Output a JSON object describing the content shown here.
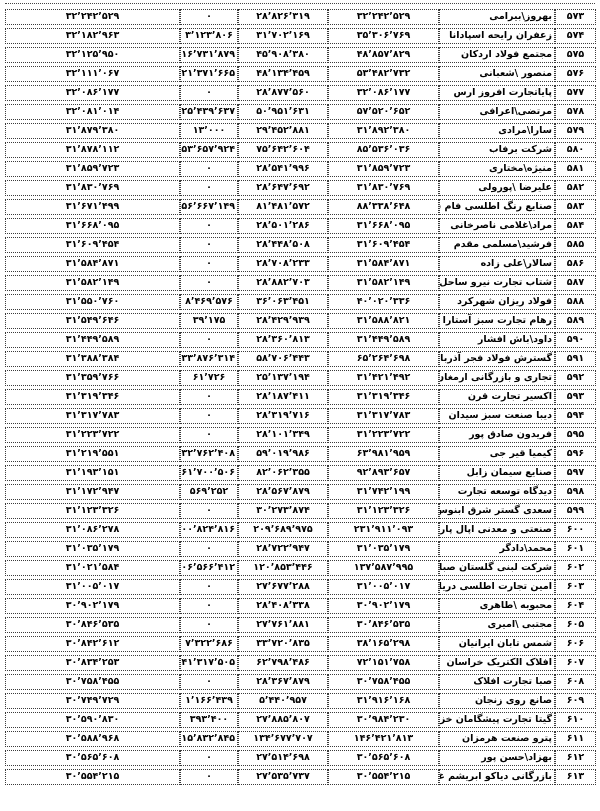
{
  "page": {
    "background": "#ffffff",
    "text_color": "#000000",
    "border_style": "dotted-black"
  },
  "table": {
    "direction": "rtl",
    "columns": [
      "rank",
      "name",
      "value1",
      "value2",
      "value3",
      "value4"
    ],
    "rows": [
      {
        "no": "۵۷۳",
        "name": "بهروز\\بیرامی",
        "v1": "۳۲٬۲۴۲٬۵۲۹",
        "v2": "۲۸٬۸۲۶٬۳۱۹",
        "v3": "۰",
        "v4": "۳۲٬۲۴۲٬۵۲۹"
      },
      {
        "no": "۵۷۴",
        "name": "زعفران رایحه اسپادانا",
        "v1": "۳۵٬۳۰۶٬۷۶۹",
        "v2": "۳۱٬۷۰۲٬۱۶۹",
        "v3": "۳٬۱۲۳٬۸۰۶",
        "v4": "۳۲٬۱۸۲٬۹۶۳"
      },
      {
        "no": "۵۷۵",
        "name": "مجتمع فولاد اردکان",
        "v1": "۴۸٬۸۵۷٬۸۲۹",
        "v2": "۴۵٬۹۰۸٬۳۸۰",
        "v3": "۱۶٬۷۳۱٬۸۷۹",
        "v4": "۳۲٬۱۲۵٬۹۵۰"
      },
      {
        "no": "۵۷۶",
        "name": "منصور \\شعبانی",
        "v1": "۵۳٬۴۸۲٬۷۳۲",
        "v2": "۴۸٬۱۳۴٬۴۵۹",
        "v3": "۲۱٬۳۷۱٬۶۶۵",
        "v4": "۳۲٬۱۱۱٬۰۶۷"
      },
      {
        "no": "۵۷۷",
        "name": "پایاتجارت افروز ارس",
        "v1": "۳۲٬۰۸۶٬۱۷۷",
        "v2": "۲۸٬۸۷۷٬۵۶۰",
        "v3": "۰",
        "v4": "۳۲٬۰۸۶٬۱۷۷"
      },
      {
        "no": "۵۷۸",
        "name": "مرتضی\\اعرافی",
        "v1": "۵۷٬۵۲۰٬۶۵۲",
        "v2": "۵۰٬۹۵۱٬۶۳۱",
        "v3": "۲۵٬۴۳۹٬۶۳۷",
        "v4": "۳۲٬۰۸۱٬۰۱۴"
      },
      {
        "no": "۵۷۹",
        "name": "سارا\\مرادی",
        "v1": "۳۱٬۸۹۲٬۳۸۰",
        "v2": "۲۹٬۴۵۲٬۸۸۱",
        "v3": "۱۳٬۰۰۰",
        "v4": "۳۱٬۸۷۹٬۳۸۰"
      },
      {
        "no": "۵۸۰",
        "name": "شرکت برفاب",
        "v1": "۸۵٬۵۳۶٬۰۳۶",
        "v2": "۷۵٬۶۴۲٬۶۰۴",
        "v3": "۵۳٬۶۵۷٬۹۲۴",
        "v4": "۳۱٬۸۷۸٬۱۱۲"
      },
      {
        "no": "۵۸۱",
        "name": "منیژه\\مختاری",
        "v1": "۳۱٬۸۵۹٬۷۲۳",
        "v2": "۲۸٬۵۴۱٬۹۹۶",
        "v3": "۰",
        "v4": "۳۱٬۸۵۹٬۷۲۳"
      },
      {
        "no": "۵۸۲",
        "name": "علیرضا \\پورولی",
        "v1": "۳۱٬۸۳۰٬۷۶۹",
        "v2": "۲۸٬۶۴۷٬۶۹۲",
        "v3": "۰",
        "v4": "۳۱٬۸۳۰٬۷۶۹"
      },
      {
        "no": "۵۸۳",
        "name": "صنایع رنگ اطلسی فام سهند",
        "v1": "۸۸٬۳۳۸٬۶۴۸",
        "v2": "۸۱٬۴۸۱٬۵۷۲",
        "v3": "۵۶٬۶۶۷٬۱۴۹",
        "v4": "۳۱٬۶۷۱٬۴۹۹"
      },
      {
        "no": "۵۸۴",
        "name": "مراد\\غلامی ناصرخانی",
        "v1": "۳۱٬۶۶۸٬۰۹۵",
        "v2": "۲۸٬۵۰۱٬۲۸۶",
        "v3": "۰",
        "v4": "۳۱٬۶۶۸٬۰۹۵"
      },
      {
        "no": "۵۸۵",
        "name": "فرشید\\مسلمی مقدم",
        "v1": "۳۱٬۶۰۹٬۴۵۴",
        "v2": "۲۸٬۴۴۸٬۵۰۸",
        "v3": "۰",
        "v4": "۳۱٬۶۰۹٬۴۵۴"
      },
      {
        "no": "۵۸۶",
        "name": "سالار\\علی زاده",
        "v1": "۳۱٬۵۸۴٬۸۷۱",
        "v2": "۲۸٬۷۰۸٬۲۳۳",
        "v3": "۰",
        "v4": "۳۱٬۵۸۴٬۸۷۱"
      },
      {
        "no": "۵۸۷",
        "name": "شتاب تجارت نیرو ساحل",
        "v1": "۳۱٬۵۸۲٬۱۴۹",
        "v2": "۲۸٬۸۸۲٬۷۰۳",
        "v3": "۰",
        "v4": "۳۱٬۵۸۲٬۱۴۹"
      },
      {
        "no": "۵۸۸",
        "name": "فولاد ریزان شهرکرد",
        "v1": "۴۰٬۰۲۰٬۳۳۶",
        "v2": "۳۶٬۰۶۳٬۴۵۱",
        "v3": "۸٬۴۶۹٬۵۷۶",
        "v4": "۳۱٬۵۵۰٬۷۶۰"
      },
      {
        "no": "۵۸۹",
        "name": "رهام تجارت سبز آستارا",
        "v1": "۳۱٬۵۸۸٬۸۲۱",
        "v2": "۲۸٬۴۲۹٬۹۳۹",
        "v3": "۳۹٬۱۷۵",
        "v4": "۳۱٬۵۴۹٬۶۴۶"
      },
      {
        "no": "۵۹۰",
        "name": "داود\\باش افشار",
        "v1": "۳۱٬۴۴۹٬۵۸۹",
        "v2": "۲۸٬۳۶۰٬۸۱۳",
        "v3": "۰",
        "v4": "۳۱٬۴۴۹٬۵۸۹"
      },
      {
        "no": "۵۹۱",
        "name": "گسترش فولاد فجر آذربایجان",
        "v1": "۶۵٬۲۶۴٬۶۹۸",
        "v2": "۵۸٬۷۰۶٬۴۴۳",
        "v3": "۳۳٬۸۷۶٬۳۱۴",
        "v4": "۳۱٬۳۸۸٬۳۸۴"
      },
      {
        "no": "۵۹۲",
        "name": "تجاری و بازرگانی ارمغان مهر بازتاب",
        "v1": "۳۱٬۴۲۱٬۴۹۲",
        "v2": "۲۵٬۱۳۷٬۱۹۴",
        "v3": "۶۱٬۷۲۶",
        "v4": "۳۱٬۳۵۹٬۷۶۶"
      },
      {
        "no": "۵۹۳",
        "name": "اکسیر تجارت قرن",
        "v1": "۳۱٬۳۱۹٬۳۴۶",
        "v2": "۲۸٬۱۸۷٬۴۱۱",
        "v3": "۰",
        "v4": "۳۱٬۳۱۹٬۳۴۶"
      },
      {
        "no": "۵۹۴",
        "name": "دیبا صنعت سبز سیدان",
        "v1": "۳۱٬۳۱۷٬۷۸۳",
        "v2": "۲۸٬۳۱۹٬۷۱۶",
        "v3": "۰",
        "v4": "۳۱٬۳۱۷٬۷۸۳"
      },
      {
        "no": "۵۹۵",
        "name": "فریدون صادق پور",
        "v1": "۳۱٬۲۲۳٬۷۲۲",
        "v2": "۲۸٬۱۰۱٬۳۴۹",
        "v3": "۰",
        "v4": "۳۱٬۲۲۳٬۷۲۲"
      },
      {
        "no": "۵۹۶",
        "name": "کیمیا قیر جی",
        "v1": "۶۳٬۹۸۱٬۹۵۹",
        "v2": "۵۹٬۰۱۹٬۹۸۶",
        "v3": "۳۲٬۷۶۲٬۴۰۸",
        "v4": "۳۱٬۲۱۹٬۵۵۱"
      },
      {
        "no": "۵۹۷",
        "name": "صنایع سیمان زابل",
        "v1": "۹۲٬۸۹۳٬۶۵۷",
        "v2": "۸۲٬۰۶۲٬۳۵۵",
        "v3": "۶۱٬۷۰۰٬۵۰۶",
        "v4": "۳۱٬۱۹۳٬۱۵۱"
      },
      {
        "no": "۵۹۸",
        "name": "دیدگاه توسعه تجارت",
        "v1": "۳۱٬۷۴۲٬۱۹۹",
        "v2": "۲۸٬۵۶۷٬۸۷۹",
        "v3": "۵۶۹٬۲۵۲",
        "v4": "۳۱٬۱۷۲٬۹۴۷"
      },
      {
        "no": "۵۹۹",
        "name": "سعدی گستر شرق ابنوس",
        "v1": "۳۱٬۱۲۳٬۳۲۶",
        "v2": "۳۰٬۲۷۳٬۸۷۴",
        "v3": "۰",
        "v4": "۳۱٬۱۲۳٬۳۲۶"
      },
      {
        "no": "۶۰۰",
        "name": "صنعتی و معدنی اپال پارسیان سنگان",
        "v1": "۲۳۱٬۹۱۱٬۰۹۳",
        "v2": "۲۰۹٬۶۸۹٬۹۷۵",
        "v3": "۲۰۰٬۸۲۴٬۸۱۶",
        "v4": "۳۱٬۰۸۶٬۲۷۸"
      },
      {
        "no": "۶۰۱",
        "name": "محمد\\دادگر",
        "v1": "۳۱٬۰۳۵٬۱۷۹",
        "v2": "۲۸٬۷۲۲٬۹۴۷",
        "v3": "۰",
        "v4": "۳۱٬۰۳۵٬۱۷۹"
      },
      {
        "no": "۶۰۲",
        "name": "شرکت لبنی گلستان صباح",
        "v1": "۱۳۷٬۵۸۷٬۹۹۵",
        "v2": "۱۲۰٬۸۵۳٬۴۴۶",
        "v3": "۱۰۶٬۵۶۶٬۴۱۲",
        "v4": "۳۱٬۰۲۱٬۵۸۴"
      },
      {
        "no": "۶۰۳",
        "name": "امین تجارت اطلسی دریا",
        "v1": "۳۱٬۰۰۵٬۰۱۷",
        "v2": "۲۷٬۶۷۷٬۲۸۸",
        "v3": "۰",
        "v4": "۳۱٬۰۰۵٬۰۱۷"
      },
      {
        "no": "۶۰۴",
        "name": "محبوبه \\طاهری",
        "v1": "۳۰٬۹۰۲٬۱۷۹",
        "v2": "۲۸٬۴۰۸٬۳۳۸",
        "v3": "۰",
        "v4": "۳۰٬۹۰۲٬۱۷۹"
      },
      {
        "no": "۶۰۵",
        "name": "مجتبی \\امیری",
        "v1": "۳۰٬۸۴۶٬۵۳۵",
        "v2": "۲۷٬۷۶۱٬۸۸۱",
        "v3": "۰",
        "v4": "۳۰٬۸۴۶٬۵۳۵"
      },
      {
        "no": "۶۰۶",
        "name": "شمس تابان ایرانیان",
        "v1": "۳۸٬۱۶۵٬۲۹۸",
        "v2": "۳۳٬۷۲۰٬۸۳۵",
        "v3": "۷٬۳۲۲٬۶۸۶",
        "v4": "۳۰٬۸۴۲٬۶۱۲"
      },
      {
        "no": "۶۰۷",
        "name": "افلاک الکتریک خراسان",
        "v1": "۷۲٬۱۵۱٬۷۵۸",
        "v2": "۶۲٬۷۹۸٬۴۸۶",
        "v3": "۴۱٬۳۱۷٬۵۰۵",
        "v4": "۳۰٬۸۳۴٬۲۵۳"
      },
      {
        "no": "۶۰۸",
        "name": "صبا تجارت افلاک",
        "v1": "۳۰٬۷۵۸٬۴۵۵",
        "v2": "۲۸٬۳۶۷٬۸۷۹",
        "v3": "۰",
        "v4": "۳۰٬۷۵۸٬۴۵۵"
      },
      {
        "no": "۶۰۹",
        "name": "صانع روی زنجان",
        "v1": "۳۱٬۹۱۶٬۱۶۸",
        "v2": "۵٬۴۴۰٬۹۵۷",
        "v3": "۱٬۱۶۶٬۴۳۹",
        "v4": "۳۰٬۷۴۹٬۷۲۹"
      },
      {
        "no": "۶۱۰",
        "name": "گیتا تجارت پیشگامان خزر",
        "v1": "۳۰٬۹۸۴٬۲۳۰",
        "v2": "۲۷٬۸۸۵٬۸۰۷",
        "v3": "۳۹۳٬۴۰۰",
        "v4": "۳۰٬۵۹۰٬۸۳۰"
      },
      {
        "no": "۶۱۱",
        "name": "پترو صنعت هرمزان",
        "v1": "۱۴۶٬۴۲۱٬۸۱۳",
        "v2": "۱۳۴٬۶۷۷٬۷۰۷",
        "v3": "۱۱۵٬۸۳۲٬۸۴۵",
        "v4": "۳۰٬۵۸۸٬۹۶۸"
      },
      {
        "no": "۶۱۲",
        "name": "بهزاد\\حسن پور",
        "v1": "۳۰٬۵۶۵٬۶۰۸",
        "v2": "۲۷٬۵۱۴٬۶۹۸",
        "v3": "۰",
        "v4": "۳۰٬۵۶۵٬۶۰۸"
      },
      {
        "no": "۶۱۳",
        "name": "بازرگانی دیاکو ابریشم غرب",
        "v1": "۳۰٬۵۵۴٬۲۱۵",
        "v2": "۲۷٬۵۳۵٬۷۳۷",
        "v3": "۰",
        "v4": "۳۰٬۵۵۴٬۲۱۵"
      }
    ]
  }
}
